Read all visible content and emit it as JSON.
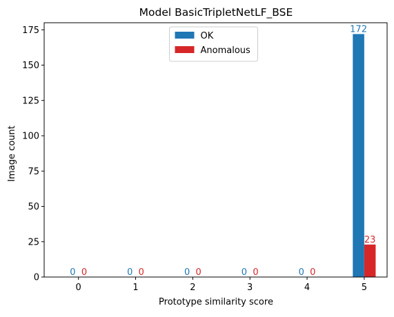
{
  "chart_data": {
    "type": "bar",
    "title": "Model BasicTripletNetLF_BSE",
    "xlabel": "Prototype similarity score",
    "ylabel": "Image count",
    "categories": [
      "0",
      "1",
      "2",
      "3",
      "4",
      "5"
    ],
    "series": [
      {
        "name": "OK",
        "values": [
          0,
          0,
          0,
          0,
          0,
          172
        ],
        "color": "#1f77b4"
      },
      {
        "name": "Anomalous",
        "values": [
          0,
          0,
          0,
          0,
          0,
          23
        ],
        "color": "#d62728"
      }
    ],
    "ylim": [
      0,
      180
    ],
    "yticks": [
      0,
      25,
      50,
      75,
      100,
      125,
      150,
      175
    ],
    "grid": false,
    "legend": "upper center"
  }
}
